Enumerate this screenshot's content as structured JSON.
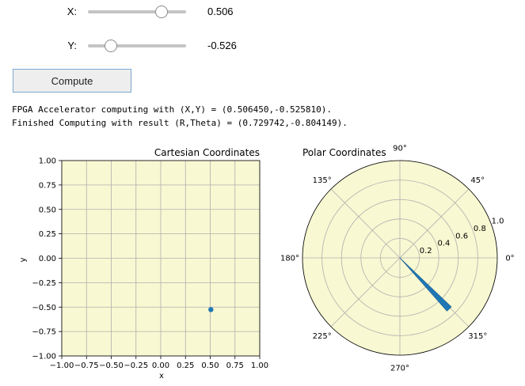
{
  "sliders": [
    {
      "label": "X:",
      "value_text": "0.506",
      "value": 0.50645,
      "min": -1,
      "max": 1
    },
    {
      "label": "Y:",
      "value_text": "-0.526",
      "value": -0.52581,
      "min": -1,
      "max": 1
    }
  ],
  "compute_label": "Compute",
  "console": [
    "FPGA Accelerator computing with (X,Y) = (0.506450,-0.525810).",
    "Finished Computing with result (R,Theta) = (0.729742,-0.804149)."
  ],
  "colors": {
    "plot_bg": "#f8f8d2",
    "marker": "#1f77b4",
    "grid": "#b0b0b0"
  },
  "chart_data": [
    {
      "type": "scatter",
      "title": "Cartesian Coordinates",
      "xlabel": "x",
      "ylabel": "y",
      "xlim": [
        -1.0,
        1.0
      ],
      "ylim": [
        -1.0,
        1.0
      ],
      "xticks": [
        "−1.00",
        "−0.75",
        "−0.50",
        "−0.25",
        "0.00",
        "0.25",
        "0.50",
        "0.75",
        "1.00"
      ],
      "yticks": [
        "1.00",
        "0.75",
        "0.50",
        "0.25",
        "0.00",
        "−0.25",
        "−0.50",
        "−0.75",
        "−1.00"
      ],
      "grid": true,
      "points": [
        {
          "x": 0.50645,
          "y": -0.52581
        }
      ]
    },
    {
      "type": "polar",
      "title": "Polar Coordinates",
      "r_max": 1.0,
      "r_ticks": [
        "0.2",
        "0.4",
        "0.6",
        "0.8",
        "1.0"
      ],
      "angle_ticks": [
        "0°",
        "45°",
        "90°",
        "135°",
        "180°",
        "225°",
        "270°",
        "315°"
      ],
      "grid": true,
      "bar": {
        "theta": -0.804149,
        "r": 0.729742,
        "width": 0.087
      }
    }
  ]
}
